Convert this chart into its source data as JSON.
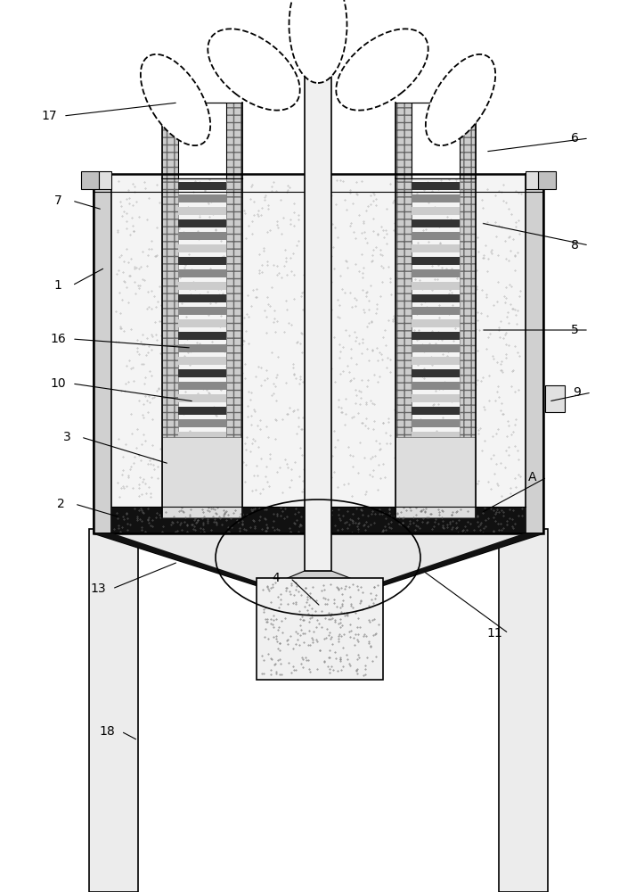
{
  "bg_color": "#ffffff",
  "line_color": "#000000",
  "labels_data": [
    [
      "17",
      55,
      130,
      200,
      115
    ],
    [
      "6",
      645,
      155,
      545,
      170
    ],
    [
      "7",
      65,
      225,
      115,
      235
    ],
    [
      "1",
      65,
      320,
      118,
      300
    ],
    [
      "8",
      645,
      275,
      540,
      250
    ],
    [
      "16",
      65,
      380,
      215,
      390
    ],
    [
      "5",
      645,
      370,
      540,
      370
    ],
    [
      "10",
      65,
      430,
      218,
      450
    ],
    [
      "9",
      648,
      440,
      616,
      450
    ],
    [
      "3",
      75,
      490,
      190,
      520
    ],
    [
      "A",
      598,
      535,
      540,
      575
    ],
    [
      "2",
      68,
      565,
      135,
      580
    ],
    [
      "4",
      310,
      648,
      360,
      680
    ],
    [
      "13",
      110,
      660,
      200,
      630
    ],
    [
      "11",
      555,
      710,
      475,
      640
    ],
    [
      "18",
      120,
      820,
      155,
      830
    ]
  ]
}
